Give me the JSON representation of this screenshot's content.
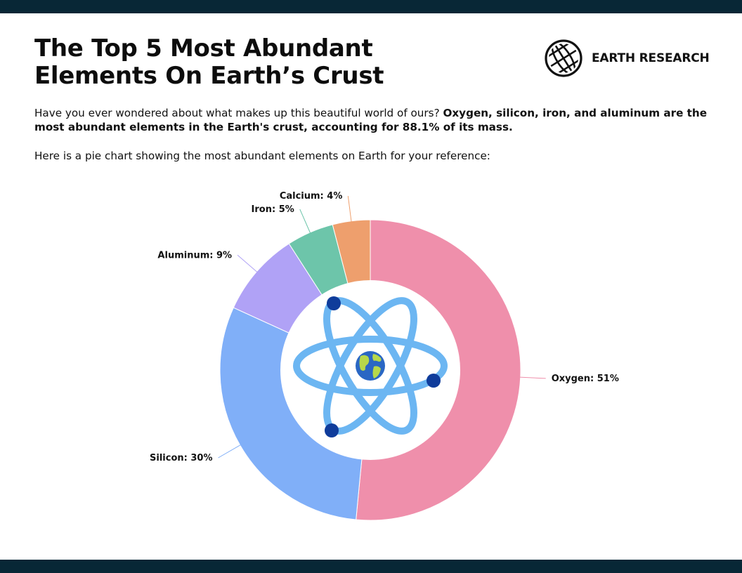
{
  "title": "The Top 5 Most Abundant Elements On Earth’s Crust",
  "brand": {
    "name": "EARTH RESEARCH",
    "icon": "globe-icon"
  },
  "intro": {
    "plain": "Have you ever wondered about what makes up this beautiful world of ours?",
    "bold": "Oxygen, silicon, iron, and aluminum are the most abundant elements in the Earth's crust, accounting for 88.1% of its mass."
  },
  "note": "Here is a pie chart showing the most abundant elements on Earth for your reference:",
  "colors": {
    "frame": "#082736",
    "oxygen": "#ef8fab",
    "silicon": "#80aff8",
    "aluminum": "#b0a2f6",
    "iron": "#6dc5aa",
    "calcium": "#ee9f6d",
    "atom_orbit": "#6cb6f2",
    "atom_electron": "#0f3c9b"
  },
  "chart_data": {
    "type": "pie",
    "donut": true,
    "center_icon": "atom-icon",
    "slices": [
      {
        "name": "Oxygen",
        "value": 51,
        "label": "Oxygen: 51%",
        "color": "#ef8fab"
      },
      {
        "name": "Silicon",
        "value": 30,
        "label": "Silicon: 30%",
        "color": "#80aff8"
      },
      {
        "name": "Aluminum",
        "value": 9,
        "label": "Aluminum: 9%",
        "color": "#b0a2f6"
      },
      {
        "name": "Iron",
        "value": 5,
        "label": "Iron: 5%",
        "color": "#6dc5aa"
      },
      {
        "name": "Calcium",
        "value": 4,
        "label": "Calcium: 4%",
        "color": "#ee9f6d"
      }
    ]
  }
}
